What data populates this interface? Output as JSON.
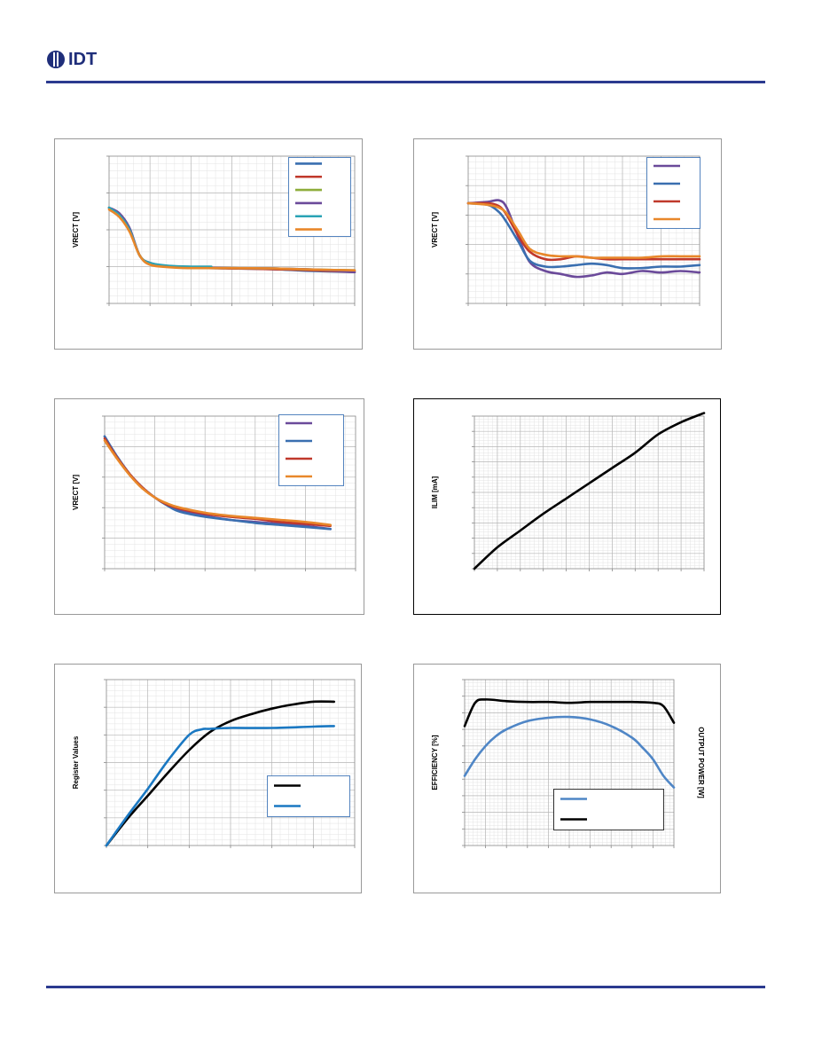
{
  "header": {
    "logo_text": "IDT"
  },
  "colors": {
    "rule": "#2b3a8f",
    "logo": "#1f2e7a",
    "grid": "#c0c0c0",
    "plot_border": "#888888"
  },
  "chart_data": [
    {
      "type": "line",
      "ylabel": "VRECT [V]",
      "xlim": [
        0,
        6
      ],
      "ylim": [
        0,
        4
      ],
      "legend": "top-right",
      "series": [
        {
          "color": "#3a6fb0",
          "x": [
            0,
            0.25,
            0.5,
            0.75,
            1.0,
            1.5,
            2.0,
            3.0,
            4.0,
            5.0,
            6.0
          ],
          "y": [
            2.6,
            2.4,
            2.0,
            1.3,
            1.1,
            1.0,
            0.97,
            0.95,
            0.93,
            0.88,
            0.85
          ]
        },
        {
          "color": "#c0392b",
          "x": [
            0,
            0.25,
            0.5,
            0.75,
            1.0,
            1.5,
            2.0,
            3.0,
            4.0,
            5.0,
            6.0
          ],
          "y": [
            2.6,
            2.4,
            2.0,
            1.3,
            1.1,
            1.0,
            0.97,
            0.95,
            0.93,
            0.9,
            0.85
          ]
        },
        {
          "color": "#8fad3c",
          "x": [
            0,
            0.25,
            0.5,
            0.75,
            1.0,
            1.5,
            2.0,
            3.0,
            4.0,
            5.0,
            6.0
          ],
          "y": [
            2.6,
            2.4,
            2.0,
            1.3,
            1.1,
            1.0,
            0.98,
            0.96,
            0.95,
            0.92,
            0.9
          ]
        },
        {
          "color": "#6b4a9a",
          "x": [
            0,
            0.25,
            0.5,
            0.75,
            1.0,
            1.5,
            2.0,
            3.0,
            4.0,
            5.0,
            6.0
          ],
          "y": [
            2.6,
            2.45,
            2.05,
            1.3,
            1.1,
            1.0,
            0.98,
            0.96,
            0.95,
            0.92,
            0.85
          ]
        },
        {
          "color": "#2aa3b5",
          "x": [
            0,
            0.25,
            0.5,
            0.75,
            1.0,
            1.5,
            2.0,
            2.5
          ],
          "y": [
            2.6,
            2.4,
            2.0,
            1.3,
            1.1,
            1.02,
            1.0,
            1.0
          ]
        },
        {
          "color": "#e8872a",
          "x": [
            0,
            0.25,
            0.5,
            0.75,
            1.0,
            1.5,
            2.0,
            3.0,
            4.0,
            5.0,
            6.0
          ],
          "y": [
            2.55,
            2.35,
            1.95,
            1.3,
            1.05,
            0.98,
            0.96,
            0.96,
            0.95,
            0.92,
            0.9
          ]
        }
      ]
    },
    {
      "type": "line",
      "ylabel": "VRECT [V]",
      "xlim": [
        0,
        6
      ],
      "ylim": [
        0,
        10
      ],
      "legend": "top-right",
      "series": [
        {
          "color": "#6b4a9a",
          "x": [
            0,
            0.5,
            0.8,
            1.0,
            1.3,
            1.6,
            2.0,
            2.4,
            2.8,
            3.2,
            3.6,
            4.0,
            4.5,
            5.0,
            5.5,
            6.0
          ],
          "y": [
            6.8,
            6.9,
            7.0,
            6.5,
            4.5,
            2.8,
            2.2,
            2.0,
            1.8,
            1.9,
            2.1,
            2.0,
            2.2,
            2.1,
            2.2,
            2.1
          ]
        },
        {
          "color": "#3a6fb0",
          "x": [
            0,
            0.5,
            0.8,
            1.0,
            1.3,
            1.6,
            2.0,
            2.4,
            2.8,
            3.2,
            3.6,
            4.0,
            4.5,
            5.0,
            5.5,
            6.0
          ],
          "y": [
            6.8,
            6.7,
            6.2,
            5.5,
            4.2,
            2.9,
            2.5,
            2.5,
            2.6,
            2.7,
            2.6,
            2.4,
            2.4,
            2.5,
            2.5,
            2.6
          ]
        },
        {
          "color": "#c0392b",
          "x": [
            0,
            0.5,
            0.8,
            1.0,
            1.3,
            1.6,
            2.0,
            2.4,
            2.8,
            3.2,
            3.6,
            4.0,
            4.5,
            5.0,
            5.5,
            6.0
          ],
          "y": [
            6.8,
            6.8,
            6.6,
            6.0,
            4.6,
            3.5,
            3.0,
            3.0,
            3.2,
            3.1,
            3.0,
            3.0,
            3.0,
            3.0,
            3.0,
            3.0
          ]
        },
        {
          "color": "#e8872a",
          "x": [
            0,
            0.5,
            0.8,
            1.0,
            1.3,
            1.6,
            2.0,
            2.4,
            2.8,
            3.2,
            3.6,
            4.0,
            4.5,
            5.0,
            5.5,
            6.0
          ],
          "y": [
            6.8,
            6.7,
            6.5,
            6.1,
            4.9,
            3.7,
            3.3,
            3.2,
            3.2,
            3.1,
            3.1,
            3.1,
            3.1,
            3.2,
            3.2,
            3.2
          ]
        }
      ]
    },
    {
      "type": "line",
      "ylabel": "VRECT [V]",
      "xlim": [
        0,
        5
      ],
      "ylim": [
        0,
        15
      ],
      "legend": "top-right",
      "series": [
        {
          "color": "#6b4a9a",
          "x": [
            0,
            0.25,
            0.5,
            0.75,
            1.0,
            1.25,
            1.5,
            2.0,
            2.5,
            3.0,
            3.5,
            4.0,
            4.5
          ],
          "y": [
            13.0,
            11.0,
            9.3,
            8.0,
            7.0,
            6.3,
            5.8,
            5.2,
            4.8,
            4.6,
            4.4,
            4.2,
            3.9
          ]
        },
        {
          "color": "#3a6fb0",
          "x": [
            0,
            0.25,
            0.5,
            0.75,
            1.0,
            1.25,
            1.5,
            2.0,
            2.5,
            3.0,
            3.5,
            4.0,
            4.5
          ],
          "y": [
            13.0,
            11.0,
            9.3,
            8.0,
            7.0,
            6.2,
            5.6,
            5.1,
            4.8,
            4.5,
            4.3,
            4.1,
            3.9
          ]
        },
        {
          "color": "#c0392b",
          "x": [
            0,
            0.25,
            0.5,
            0.75,
            1.0,
            1.25,
            1.5,
            2.0,
            2.5,
            3.0,
            3.5,
            4.0,
            4.5
          ],
          "y": [
            12.8,
            10.9,
            9.3,
            8.0,
            7.0,
            6.3,
            5.9,
            5.4,
            5.1,
            4.9,
            4.6,
            4.4,
            4.2
          ]
        },
        {
          "color": "#e8872a",
          "x": [
            0,
            0.25,
            0.5,
            0.75,
            1.0,
            1.25,
            1.5,
            2.0,
            2.5,
            3.0,
            3.5,
            4.0,
            4.5
          ],
          "y": [
            12.6,
            10.8,
            9.2,
            7.9,
            7.0,
            6.4,
            6.0,
            5.5,
            5.2,
            5.0,
            4.8,
            4.6,
            4.3
          ]
        }
      ]
    },
    {
      "type": "line",
      "ylabel": "ILIM [mA]",
      "xlim": [
        0,
        10
      ],
      "ylim": [
        0,
        100
      ],
      "legend": "none",
      "series": [
        {
          "color": "#000000",
          "x": [
            0,
            1,
            2,
            3,
            4,
            5,
            6,
            7,
            8,
            9,
            10
          ],
          "y": [
            0,
            14,
            25,
            36,
            46,
            56,
            66,
            76,
            88,
            96,
            102
          ]
        }
      ]
    },
    {
      "type": "line",
      "ylabel": "Register Values",
      "xlim": [
        0,
        6
      ],
      "ylim": [
        0,
        6
      ],
      "legend": "bottom-right",
      "series": [
        {
          "color": "#000000",
          "x": [
            0,
            0.5,
            1.0,
            1.5,
            2.0,
            2.5,
            3.0,
            3.5,
            4.0,
            4.5,
            5.0,
            5.5
          ],
          "y": [
            0,
            0.95,
            1.8,
            2.65,
            3.45,
            4.1,
            4.5,
            4.75,
            4.95,
            5.1,
            5.2,
            5.2
          ]
        },
        {
          "color": "#1a78c2",
          "x": [
            0,
            0.5,
            1.0,
            1.5,
            2.0,
            2.3,
            2.5,
            3.0,
            4.0,
            5.0,
            5.5
          ],
          "y": [
            0,
            1.05,
            2.05,
            3.1,
            4.0,
            4.2,
            4.22,
            4.25,
            4.25,
            4.3,
            4.32
          ]
        }
      ]
    },
    {
      "type": "line",
      "ylabel": "EFFICIENCY [%]",
      "y2label": "OUTPUT POWER [W]",
      "xlim": [
        0,
        10
      ],
      "ylim": [
        0,
        100
      ],
      "legend": "bottom-right",
      "series": [
        {
          "color": "#4f86c6",
          "x": [
            0,
            0.5,
            1,
            1.5,
            2,
            3,
            4,
            5,
            6,
            7,
            8,
            8.5,
            9,
            9.5,
            10
          ],
          "y": [
            42,
            52,
            60,
            66,
            70,
            75,
            77,
            77.5,
            76,
            72,
            65,
            59,
            52,
            42,
            35
          ]
        },
        {
          "color": "#000000",
          "x": [
            0,
            0.5,
            1,
            2,
            3,
            4,
            5,
            6,
            7,
            8,
            9,
            9.5,
            10
          ],
          "y": [
            72,
            86,
            88,
            87,
            86.5,
            86.5,
            86,
            86.5,
            86.5,
            86.5,
            86,
            84,
            74
          ]
        }
      ]
    }
  ]
}
